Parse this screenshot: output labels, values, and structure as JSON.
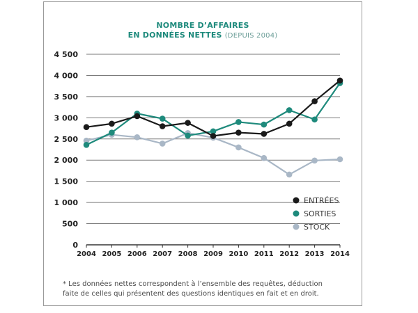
{
  "title_line1": "NOMBRE D’AFFAIRES",
  "title_line2": "EN DONNÉES NETTES",
  "title_sub": "(DEPUIS 2004)",
  "footnote_line1": "* Les données nettes correspondent à l’ensemble des requêtes, déduction",
  "footnote_line2": "faite de celles qui présentent des questions identiques en fait et en droit.",
  "chart_data": {
    "type": "line",
    "title": "NOMBRE D’AFFAIRES EN DONNÉES NETTES (DEPUIS 2004)",
    "x": [
      "2004",
      "2005",
      "2006",
      "2007",
      "2008",
      "2009",
      "2010",
      "2011",
      "2012",
      "2013",
      "2014"
    ],
    "ylim": [
      0,
      4500
    ],
    "yticks": [
      0,
      500,
      1000,
      1500,
      2000,
      2500,
      3000,
      3500,
      4000,
      4500
    ],
    "ytick_labels": [
      "0",
      "500",
      "1 000",
      "1 500",
      "2 000",
      "2 500",
      "3 000",
      "3 500",
      "4 000",
      "4 500"
    ],
    "grid": "horizontal",
    "legend_position": "bottom-right",
    "series": [
      {
        "name": "ENTRÉES",
        "color": "#1a1a1a",
        "values": [
          2780,
          2860,
          3040,
          2800,
          2880,
          2570,
          2650,
          2620,
          2860,
          3390,
          3880
        ]
      },
      {
        "name": "SORTIES",
        "color": "#1e8a7c",
        "values": [
          2360,
          2650,
          3100,
          2980,
          2580,
          2680,
          2900,
          2840,
          3180,
          2960,
          3820
        ]
      },
      {
        "name": "STOCK",
        "color": "#a9b7c6",
        "values": [
          2460,
          2600,
          2540,
          2390,
          2640,
          2530,
          2300,
          2050,
          1660,
          1990,
          2020
        ]
      }
    ]
  }
}
